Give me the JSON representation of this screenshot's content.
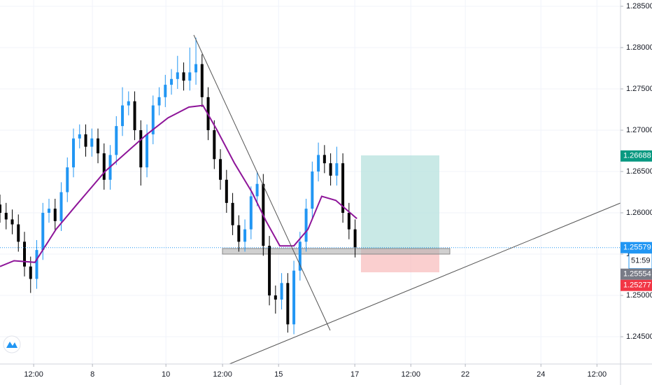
{
  "chart_data": {
    "type": "candlestick",
    "x": [
      0,
      2,
      4,
      6,
      8,
      10,
      12,
      14,
      16,
      18,
      20,
      22,
      24,
      26,
      28,
      30,
      32,
      34,
      36,
      38,
      40,
      42,
      44,
      46,
      48,
      50,
      52,
      54,
      56,
      58,
      60,
      62,
      64,
      66,
      68,
      70,
      72,
      74,
      76,
      78,
      80,
      82,
      84,
      86,
      88,
      90,
      92,
      94,
      96,
      98,
      100,
      102,
      104,
      106,
      108,
      110,
      112,
      114,
      116
    ],
    "open": [
      1.261,
      1.26,
      1.2592,
      1.2586,
      1.2565,
      1.2535,
      1.252,
      1.2555,
      1.26,
      1.2605,
      1.259,
      1.2625,
      1.2655,
      1.269,
      1.2695,
      1.268,
      1.269,
      1.2672,
      1.264,
      1.267,
      1.2705,
      1.273,
      1.2735,
      1.27,
      1.2655,
      1.2695,
      1.273,
      1.274,
      1.2755,
      1.2762,
      1.277,
      1.276,
      1.277,
      1.278,
      1.274,
      1.27,
      1.2665,
      1.264,
      1.2612,
      1.2585,
      1.2565,
      1.258,
      1.262,
      1.2635,
      1.256,
      1.25,
      1.2495,
      1.2515,
      1.2465,
      1.253,
      1.2565,
      1.2605,
      1.265,
      1.267,
      1.266,
      1.2645,
      1.266,
      1.26,
      1.258
    ],
    "high": [
      1.2622,
      1.2612,
      1.2604,
      1.2598,
      1.2577,
      1.2547,
      1.2567,
      1.2612,
      1.2617,
      1.2617,
      1.2637,
      1.2667,
      1.2702,
      1.2707,
      1.2707,
      1.2702,
      1.2702,
      1.2684,
      1.2682,
      1.2717,
      1.2752,
      1.2747,
      1.2747,
      1.2712,
      1.2707,
      1.2742,
      1.2752,
      1.2767,
      1.2774,
      1.279,
      1.2782,
      1.28,
      1.2812,
      1.2792,
      1.2752,
      1.2712,
      1.2677,
      1.2652,
      1.2624,
      1.2597,
      1.2592,
      1.2632,
      1.265,
      1.2647,
      1.2572,
      1.2512,
      1.2527,
      1.2527,
      1.2542,
      1.2577,
      1.2617,
      1.2662,
      1.2685,
      1.2682,
      1.2672,
      1.268,
      1.2672,
      1.2612,
      1.2592
    ],
    "low": [
      1.2588,
      1.258,
      1.2574,
      1.2553,
      1.2523,
      1.2503,
      1.2508,
      1.2543,
      1.2588,
      1.2578,
      1.2578,
      1.2613,
      1.2643,
      1.2678,
      1.2668,
      1.2668,
      1.266,
      1.2628,
      1.2628,
      1.2658,
      1.2693,
      1.2718,
      1.2688,
      1.2633,
      1.2643,
      1.2683,
      1.2718,
      1.2728,
      1.2743,
      1.275,
      1.2748,
      1.2748,
      1.2755,
      1.2728,
      1.2688,
      1.2653,
      1.2628,
      1.26,
      1.2573,
      1.2553,
      1.2553,
      1.2568,
      1.2608,
      1.2548,
      1.2488,
      1.2478,
      1.2483,
      1.2455,
      1.2453,
      1.2518,
      1.2553,
      1.2593,
      1.2638,
      1.2648,
      1.2633,
      1.2633,
      1.2588,
      1.2568,
      1.2546
    ],
    "close": [
      1.26,
      1.2592,
      1.2586,
      1.2565,
      1.2535,
      1.252,
      1.2555,
      1.26,
      1.2605,
      1.259,
      1.2625,
      1.2655,
      1.269,
      1.2695,
      1.268,
      1.269,
      1.2672,
      1.264,
      1.267,
      1.2705,
      1.273,
      1.2735,
      1.27,
      1.2655,
      1.2695,
      1.273,
      1.274,
      1.2755,
      1.2762,
      1.277,
      1.276,
      1.277,
      1.278,
      1.274,
      1.27,
      1.2665,
      1.264,
      1.2612,
      1.2585,
      1.2565,
      1.258,
      1.262,
      1.2635,
      1.256,
      1.25,
      1.2495,
      1.2515,
      1.2465,
      1.253,
      1.2565,
      1.2605,
      1.265,
      1.267,
      1.266,
      1.2645,
      1.266,
      1.26,
      1.258,
      1.2558
    ],
    "up_color": "#2196f3",
    "down_color": "#000000",
    "moving_average": {
      "color": "#8e1599",
      "x": [
        0,
        4.6,
        11.4,
        18.3,
        25.1,
        34.3,
        43.4,
        48,
        54.9,
        61.7,
        66.3,
        70.9,
        76.6,
        82.3,
        86.9,
        91.4,
        96,
        100.6,
        105.1,
        109.7,
        116.6
      ],
      "values": [
        1.2535,
        1.2542,
        1.254,
        1.258,
        1.261,
        1.265,
        1.268,
        1.2695,
        1.2715,
        1.2728,
        1.273,
        1.27,
        1.266,
        1.2625,
        1.259,
        1.256,
        1.256,
        1.258,
        1.262,
        1.2615,
        1.2593
      ]
    },
    "xlim": [
      0,
      202.7
    ],
    "ylim": [
      1.2417,
      1.28576
    ],
    "xticks": [
      {
        "value": 11,
        "label": "12:00"
      },
      {
        "value": 30.2,
        "label": "8"
      },
      {
        "value": 54.2,
        "label": "10"
      },
      {
        "value": 72.7,
        "label": "12:00"
      },
      {
        "value": 91,
        "label": "15"
      },
      {
        "value": 115.9,
        "label": "17"
      },
      {
        "value": 134.2,
        "label": "12:00"
      },
      {
        "value": 152,
        "label": "22"
      },
      {
        "value": 176.7,
        "label": "24"
      },
      {
        "value": 195,
        "label": "12:00"
      }
    ],
    "yticks": [
      {
        "value": 1.245,
        "label": "1.24500"
      },
      {
        "value": 1.25,
        "label": "1.25000"
      },
      {
        "value": 1.255,
        "label": "1.25500"
      },
      {
        "value": 1.26,
        "label": "1.26000"
      },
      {
        "value": 1.265,
        "label": "1.26500"
      },
      {
        "value": 1.27,
        "label": "1.27000"
      },
      {
        "value": 1.275,
        "label": "1.27500"
      },
      {
        "value": 1.28,
        "label": "1.28000"
      },
      {
        "value": 1.285,
        "label": "1.28500"
      }
    ],
    "grid": true,
    "markers": [
      {
        "value": 1.26688,
        "color": "#089981"
      },
      {
        "value": 1.25579,
        "color": "#2196f3"
      },
      {
        "value": 1.25554,
        "color": "#787b86"
      },
      {
        "value": 1.25277,
        "color": "#f23645"
      }
    ],
    "countdown": "51:59"
  }
}
